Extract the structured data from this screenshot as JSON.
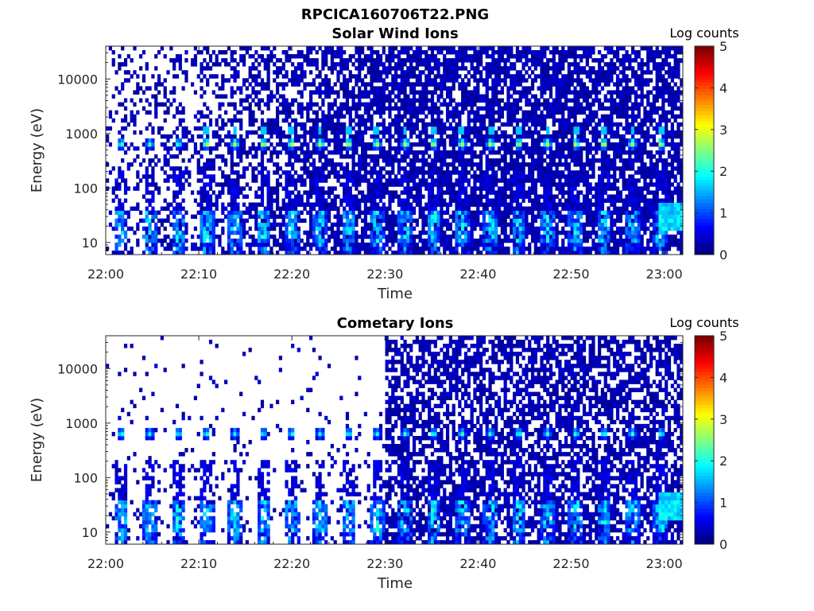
{
  "figure_title": "RPCICA160706T22.PNG",
  "chart_data": [
    {
      "type": "heatmap",
      "title": "Solar Wind Ions",
      "xlabel": "Time",
      "ylabel": "Energy (eV)",
      "x_ticks": [
        "22:00",
        "22:10",
        "22:20",
        "22:30",
        "22:40",
        "22:50",
        "23:00"
      ],
      "xlim": [
        "22:00",
        "23:02"
      ],
      "y_scale": "log",
      "y_ticks": [
        "10",
        "100",
        "1000",
        "10000"
      ],
      "ylim": [
        6,
        40000
      ],
      "colorbar": {
        "label": "Log counts",
        "ticks": [
          "0",
          "1",
          "2",
          "3",
          "4",
          "5"
        ],
        "range": [
          0,
          5
        ],
        "colormap": "jet"
      },
      "features": [
        {
          "energy_eV": 650,
          "log_counts": 2.6,
          "description": "solar wind ion peak, repeating every ~3 min"
        },
        {
          "energy_eV": 1100,
          "log_counts": 1.7,
          "description": "secondary peak"
        },
        {
          "energy_eV": 10,
          "log_counts": 1.0,
          "description": "low-energy bursts"
        },
        {
          "energy_eV": 25,
          "log_counts": 1.9,
          "time": "23:00",
          "description": "low-energy enhancement at end"
        }
      ],
      "grid": false
    },
    {
      "type": "heatmap",
      "title": "Cometary Ions",
      "xlabel": "Time",
      "ylabel": "Energy (eV)",
      "x_ticks": [
        "22:00",
        "22:10",
        "22:20",
        "22:30",
        "22:40",
        "22:50",
        "23:00"
      ],
      "xlim": [
        "22:00",
        "23:02"
      ],
      "y_scale": "log",
      "y_ticks": [
        "10",
        "100",
        "1000",
        "10000"
      ],
      "ylim": [
        6,
        40000
      ],
      "colorbar": {
        "label": "Log counts",
        "ticks": [
          "0",
          "1",
          "2",
          "3",
          "4",
          "5"
        ],
        "range": [
          0,
          5
        ],
        "colormap": "jet"
      },
      "features": [
        {
          "energy_eV": 650,
          "log_counts": 1.9,
          "description": "solar wind ion peak, repeating every ~3 min"
        },
        {
          "energy_eV": 15,
          "log_counts": 1.6,
          "description": "low-energy cometary ion bursts"
        },
        {
          "time": "22:30",
          "description": "dense background onset after 22:30"
        }
      ],
      "grid": false
    }
  ]
}
